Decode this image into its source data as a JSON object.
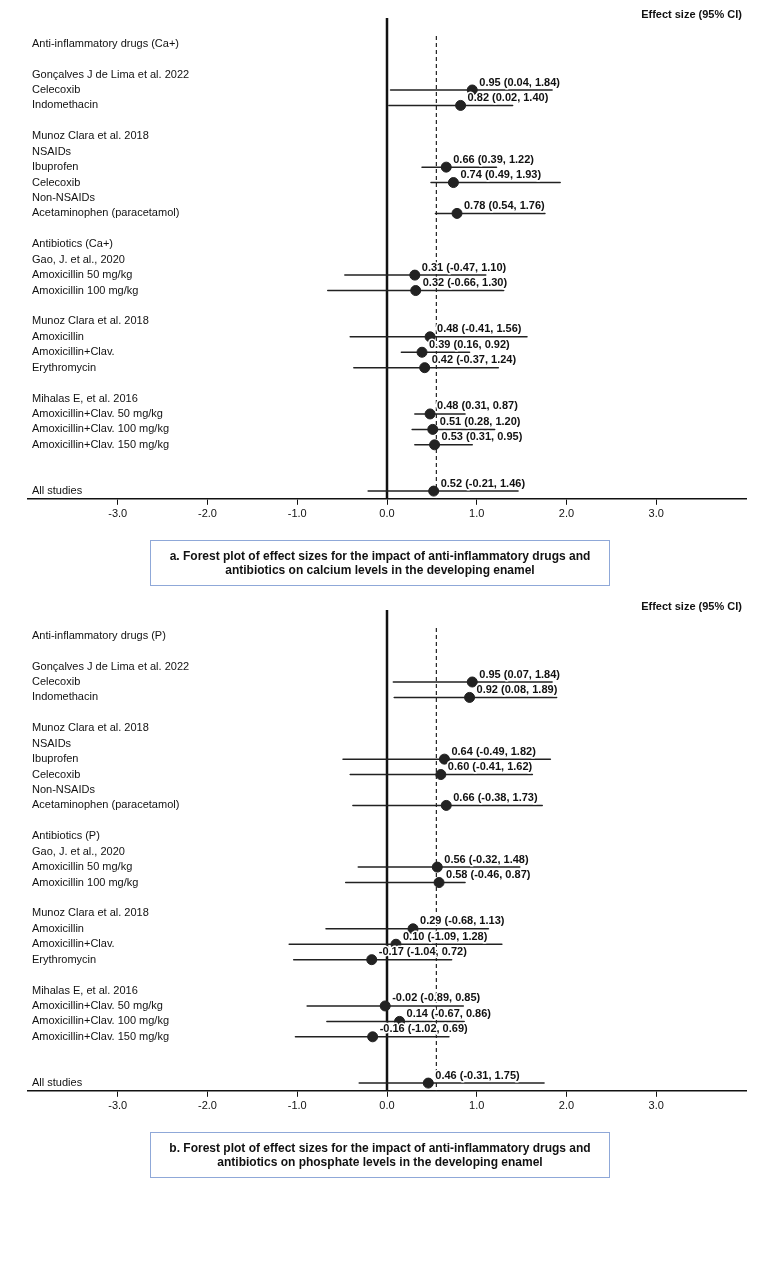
{
  "chart_data": [
    {
      "type": "scatter",
      "categories": [
        "Anti-inflammatory drugs (Ca+)",
        null,
        "Gonçalves J de Lima et al. 2022",
        "Celecoxib",
        "Indomethacin",
        null,
        "Munoz Clara et al. 2018",
        "NSAIDs",
        "Ibuprofen",
        "Celecoxib",
        "Non-NSAIDs",
        "Acetaminophen (paracetamol)",
        null,
        "Antibiotics (Ca+)",
        "Gao, J. et al., 2020",
        "Amoxicillin 50 mg/kg",
        "Amoxicillin 100 mg/kg",
        null,
        "Munoz Clara et al. 2018",
        "Amoxicillin",
        "Amoxicillin+Clav.",
        "Erythromycin",
        null,
        "Mihalas E, et al. 2016",
        "Amoxicillin+Clav. 50 mg/kg",
        "Amoxicillin+Clav. 100 mg/kg",
        "Amoxicillin+Clav. 150 mg/kg",
        null,
        null,
        "All studies"
      ],
      "values": [
        null,
        null,
        null,
        0.95,
        0.82,
        null,
        null,
        null,
        0.66,
        0.74,
        null,
        0.78,
        null,
        null,
        null,
        0.31,
        0.32,
        null,
        null,
        0.48,
        0.39,
        0.42,
        null,
        null,
        0.48,
        0.51,
        0.53,
        null,
        null,
        0.52
      ],
      "errors": [
        null,
        null,
        null,
        [
          0.04,
          1.84
        ],
        [
          0.02,
          1.4
        ],
        null,
        null,
        null,
        [
          0.39,
          1.22
        ],
        [
          0.49,
          1.93
        ],
        null,
        [
          0.54,
          1.76
        ],
        null,
        null,
        null,
        [
          -0.47,
          1.1
        ],
        [
          -0.66,
          1.3
        ],
        null,
        null,
        [
          -0.41,
          1.56
        ],
        [
          0.16,
          0.92
        ],
        [
          -0.37,
          1.24
        ],
        null,
        null,
        [
          0.31,
          0.87
        ],
        [
          0.28,
          1.2
        ],
        [
          0.31,
          0.95
        ],
        null,
        null,
        [
          -0.21,
          1.46
        ]
      ],
      "value_labels": [
        null,
        null,
        null,
        "0.95 (0.04, 1.84)",
        "0.82 (0.02, 1.40)",
        null,
        null,
        null,
        "0.66 (0.39, 1.22)",
        "0.74 (0.49, 1.93)",
        null,
        "0.78 (0.54, 1.76)",
        null,
        null,
        null,
        "0.31 (-0.47, 1.10)",
        "0.32 (-0.66, 1.30)",
        null,
        null,
        "0.48 (-0.41, 1.56)",
        "0.39 (0.16, 0.92)",
        "0.42 (-0.37, 1.24)",
        null,
        null,
        "0.48 (0.31, 0.87)",
        "0.51 (0.28, 1.20)",
        "0.53 (0.31, 0.95)",
        null,
        null,
        "0.52 (-0.21, 1.46)"
      ],
      "color": "#222222",
      "marker": "circle",
      "orientation": "horizontal",
      "xlim": [
        -4,
        4
      ],
      "xticks": [
        {
          "value": -3,
          "label": "-3.0"
        },
        {
          "value": -2,
          "label": "-2.0"
        },
        {
          "value": -1,
          "label": "-1.0"
        },
        {
          "value": 0,
          "label": "0.0"
        },
        {
          "value": 1,
          "label": "1.0"
        },
        {
          "value": 2,
          "label": "2.0"
        },
        {
          "value": 3,
          "label": "3.0"
        }
      ],
      "ref_lines": [
        {
          "axis": "x",
          "value": 0.55,
          "line_style": "dashed",
          "color": "#222222"
        }
      ],
      "annotations": [
        "Effect size (95% CI)",
        "a. Forest plot of effect sizes for the impact of anti-inflammatory drugs and antibiotics on calcium levels in the developing enamel"
      ]
    },
    {
      "type": "scatter",
      "categories": [
        "Anti-inflammatory drugs (P)",
        null,
        "Gonçalves J de Lima et al. 2022",
        "Celecoxib",
        "Indomethacin",
        null,
        "Munoz Clara et al. 2018",
        "NSAIDs",
        "Ibuprofen",
        "Celecoxib",
        "Non-NSAIDs",
        "Acetaminophen (paracetamol)",
        null,
        "Antibiotics (P)",
        "Gao, J. et al., 2020",
        "Amoxicillin 50 mg/kg",
        "Amoxicillin 100 mg/kg",
        null,
        "Munoz Clara et al. 2018",
        "Amoxicillin",
        "Amoxicillin+Clav.",
        "Erythromycin",
        null,
        "Mihalas E, et al. 2016",
        "Amoxicillin+Clav. 50 mg/kg",
        "Amoxicillin+Clav. 100 mg/kg",
        "Amoxicillin+Clav. 150 mg/kg",
        null,
        null,
        "All studies"
      ],
      "values": [
        null,
        null,
        null,
        0.95,
        0.92,
        null,
        null,
        null,
        0.64,
        0.6,
        null,
        0.66,
        null,
        null,
        null,
        0.56,
        0.58,
        null,
        null,
        0.29,
        0.1,
        -0.17,
        null,
        null,
        -0.02,
        0.14,
        -0.16,
        null,
        null,
        0.46
      ],
      "errors": [
        null,
        null,
        null,
        [
          0.07,
          1.84
        ],
        [
          0.08,
          1.89
        ],
        null,
        null,
        null,
        [
          -0.49,
          1.82
        ],
        [
          -0.41,
          1.62
        ],
        null,
        [
          -0.38,
          1.73
        ],
        null,
        null,
        null,
        [
          -0.32,
          1.48
        ],
        [
          -0.46,
          0.87
        ],
        null,
        null,
        [
          -0.68,
          1.13
        ],
        [
          -1.09,
          1.28
        ],
        [
          -1.04,
          0.72
        ],
        null,
        null,
        [
          -0.89,
          0.85
        ],
        [
          -0.67,
          0.86
        ],
        [
          -1.02,
          0.69
        ],
        null,
        null,
        [
          -0.31,
          1.75
        ]
      ],
      "value_labels": [
        null,
        null,
        null,
        "0.95 (0.07, 1.84)",
        "0.92 (0.08, 1.89)",
        null,
        null,
        null,
        "0.64 (-0.49, 1.82)",
        "0.60 (-0.41, 1.62)",
        null,
        "0.66 (-0.38, 1.73)",
        null,
        null,
        null,
        "0.56 (-0.32, 1.48)",
        "0.58 (-0.46, 0.87)",
        null,
        null,
        "0.29 (-0.68, 1.13)",
        "0.10 (-1.09, 1.28)",
        "-0.17 (-1.04, 0.72)",
        null,
        null,
        "-0.02 (-0.89, 0.85)",
        "0.14 (-0.67, 0.86)",
        "-0.16 (-1.02, 0.69)",
        null,
        null,
        "0.46 (-0.31, 1.75)"
      ],
      "color": "#222222",
      "marker": "circle",
      "orientation": "horizontal",
      "xlim": [
        -4,
        4
      ],
      "xticks": [
        {
          "value": -3,
          "label": "-3.0"
        },
        {
          "value": -2,
          "label": "-2.0"
        },
        {
          "value": -1,
          "label": "-1.0"
        },
        {
          "value": 0,
          "label": "0.0"
        },
        {
          "value": 1,
          "label": "1.0"
        },
        {
          "value": 2,
          "label": "2.0"
        },
        {
          "value": 3,
          "label": "3.0"
        }
      ],
      "ref_lines": [
        {
          "axis": "x",
          "value": 0.55,
          "line_style": "dashed",
          "color": "#222222"
        }
      ],
      "annotations": [
        "Effect size (95% CI)",
        "b. Forest plot of effect sizes for the impact of anti-inflammatory drugs and antibiotics on phosphate levels in the developing enamel"
      ]
    }
  ]
}
